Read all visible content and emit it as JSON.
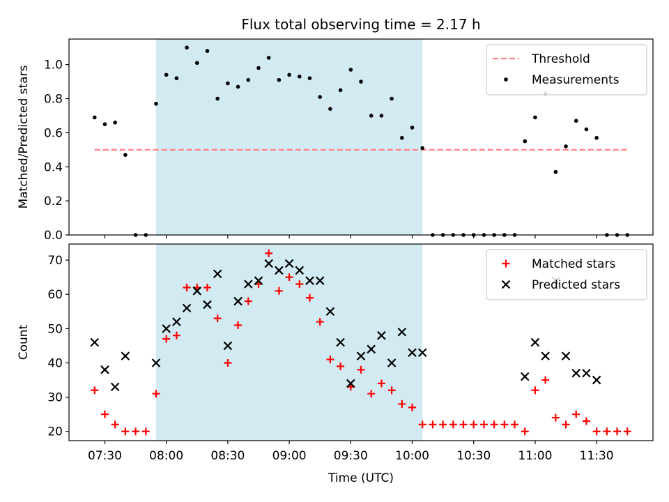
{
  "chart_data": {
    "title": "Flux total observing time = 2.17 h",
    "xlabel": "Time (UTC)",
    "x_ticks": [
      "07:30",
      "08:00",
      "08:30",
      "09:00",
      "09:30",
      "10:00",
      "10:30",
      "11:00",
      "11:30"
    ],
    "shaded_interval": [
      "07:55",
      "10:05"
    ],
    "shade_color": "#add8e6",
    "panels": [
      {
        "type": "scatter",
        "ylabel": "Matched/Predicted stars",
        "ylim": [
          0,
          1.15
        ],
        "y_ticks": [
          "0.0",
          "0.2",
          "0.4",
          "0.6",
          "0.8",
          "1.0"
        ],
        "legend_position": "top-right",
        "threshold": {
          "name": "Threshold",
          "value": 0.5,
          "x_range": [
            "07:25",
            "11:45"
          ],
          "color": "#ff7f7f",
          "style": "dashed"
        },
        "series": [
          {
            "name": "Measurements",
            "marker": "dot",
            "color": "#000000",
            "x": [
              "07:25",
              "07:30",
              "07:35",
              "07:40",
              "07:45",
              "07:50",
              "07:55",
              "08:00",
              "08:05",
              "08:10",
              "08:15",
              "08:20",
              "08:25",
              "08:30",
              "08:35",
              "08:40",
              "08:45",
              "08:50",
              "08:55",
              "09:00",
              "09:05",
              "09:10",
              "09:15",
              "09:20",
              "09:25",
              "09:30",
              "09:35",
              "09:40",
              "09:45",
              "09:50",
              "09:55",
              "10:00",
              "10:05",
              "10:10",
              "10:15",
              "10:20",
              "10:25",
              "10:30",
              "10:35",
              "10:40",
              "10:45",
              "10:50",
              "10:55",
              "11:00",
              "11:05",
              "11:10",
              "11:15",
              "11:20",
              "11:25",
              "11:30",
              "11:35",
              "11:40",
              "11:45"
            ],
            "values": [
              0.69,
              0.65,
              0.66,
              0.47,
              0.0,
              0.0,
              0.77,
              0.94,
              0.92,
              1.1,
              1.01,
              1.08,
              0.8,
              0.89,
              0.87,
              0.91,
              0.98,
              1.04,
              0.91,
              0.94,
              0.93,
              0.92,
              0.81,
              0.74,
              0.85,
              0.97,
              0.9,
              0.7,
              0.7,
              0.8,
              0.57,
              0.63,
              0.51,
              0.0,
              0.0,
              0.0,
              0.0,
              0.0,
              0.0,
              0.0,
              0.0,
              0.0,
              0.55,
              0.69,
              0.83,
              0.37,
              0.52,
              0.67,
              0.62,
              0.57,
              0.0,
              0.0,
              0.0
            ]
          }
        ]
      },
      {
        "type": "scatter",
        "ylabel": "Count",
        "ylim": [
          17.3,
          74.7
        ],
        "y_ticks": [
          "20",
          "30",
          "40",
          "50",
          "60",
          "70"
        ],
        "legend_position": "top-right",
        "series": [
          {
            "name": "Matched stars",
            "marker": "plus",
            "color": "#ff0000",
            "x": [
              "07:25",
              "07:30",
              "07:35",
              "07:40",
              "07:45",
              "07:50",
              "07:55",
              "08:00",
              "08:05",
              "08:10",
              "08:15",
              "08:20",
              "08:25",
              "08:30",
              "08:35",
              "08:40",
              "08:45",
              "08:50",
              "08:55",
              "09:00",
              "09:05",
              "09:10",
              "09:15",
              "09:20",
              "09:25",
              "09:30",
              "09:35",
              "09:40",
              "09:45",
              "09:50",
              "09:55",
              "10:00",
              "10:05",
              "10:10",
              "10:15",
              "10:20",
              "10:25",
              "10:30",
              "10:35",
              "10:40",
              "10:45",
              "10:50",
              "10:55",
              "11:00",
              "11:05",
              "11:10",
              "11:15",
              "11:20",
              "11:25",
              "11:30",
              "11:35",
              "11:40",
              "11:45"
            ],
            "values": [
              32,
              25,
              22,
              20,
              20,
              20,
              31,
              47,
              48,
              62,
              62,
              62,
              53,
              40,
              51,
              58,
              63,
              72,
              61,
              65,
              63,
              59,
              52,
              41,
              39,
              33,
              38,
              31,
              34,
              32,
              28,
              27,
              22,
              22,
              22,
              22,
              22,
              22,
              22,
              22,
              22,
              22,
              20,
              32,
              35,
              24,
              22,
              25,
              23,
              20,
              20,
              20,
              20
            ]
          },
          {
            "name": "Predicted stars",
            "marker": "x",
            "color": "#000000",
            "x": [
              "07:25",
              "07:30",
              "07:35",
              "07:40",
              "07:55",
              "08:00",
              "08:05",
              "08:10",
              "08:15",
              "08:20",
              "08:25",
              "08:30",
              "08:35",
              "08:40",
              "08:45",
              "08:50",
              "08:55",
              "09:00",
              "09:05",
              "09:10",
              "09:15",
              "09:20",
              "09:25",
              "09:30",
              "09:35",
              "09:40",
              "09:45",
              "09:50",
              "09:55",
              "10:00",
              "10:05",
              "10:55",
              "11:00",
              "11:05",
              "11:10",
              "11:15",
              "11:20",
              "11:25",
              "11:30"
            ],
            "values": [
              46,
              38,
              33,
              42,
              40,
              50,
              52,
              56,
              61,
              57,
              66,
              45,
              58,
              63,
              64,
              69,
              67,
              69,
              67,
              64,
              64,
              55,
              46,
              34,
              42,
              44,
              48,
              40,
              49,
              43,
              43,
              36,
              46,
              42,
              64,
              42,
              37,
              37,
              35
            ]
          }
        ]
      }
    ]
  }
}
